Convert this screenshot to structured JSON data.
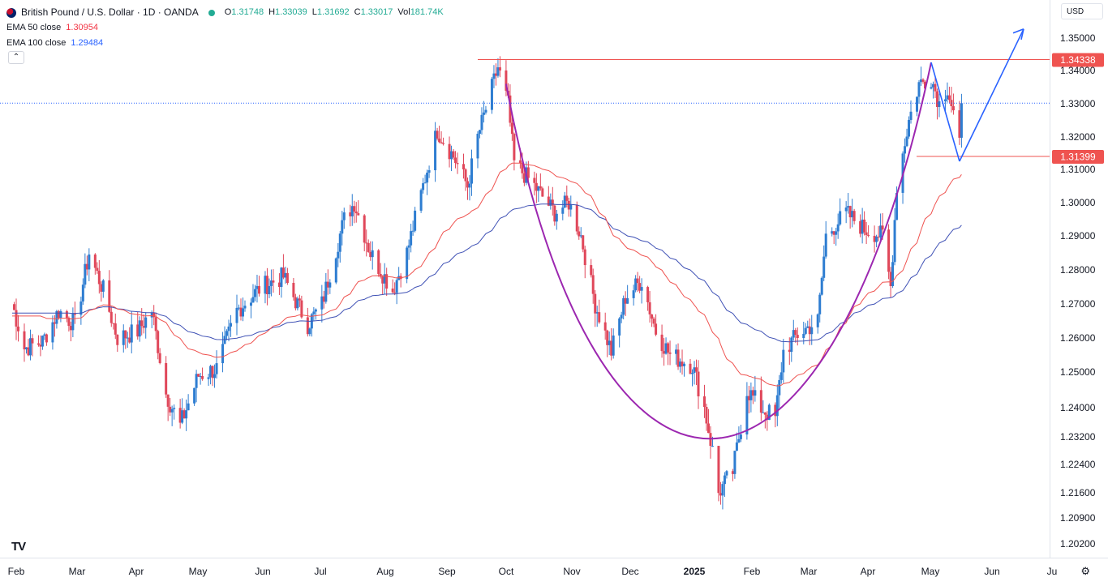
{
  "header": {
    "symbol_title": "British Pound / U.S. Dollar · 1D · OANDA",
    "ohlc": [
      {
        "label": "O",
        "value": "1.31748"
      },
      {
        "label": "H",
        "value": "1.33039"
      },
      {
        "label": "L",
        "value": "1.31692"
      },
      {
        "label": "C",
        "value": "1.33017"
      },
      {
        "label": "Vol",
        "value": "181.74K"
      }
    ],
    "ema50_label": "EMA 50 close",
    "ema50_value": "1.30954",
    "ema100_label": "EMA 100 close",
    "ema100_value": "1.29484",
    "collapse_icon": "chevron-up-icon",
    "currency": "USD",
    "logo": "TV",
    "settings_icon": "gear-icon"
  },
  "colors": {
    "up": "#2e7dd1",
    "down": "#e0475a",
    "ema50": "#ef5350",
    "ema100": "#3f51b5",
    "cup": "#9c27b0",
    "arrow": "#2962ff",
    "level": "#ef5350",
    "grid_dotted": "#2962ff"
  },
  "chart_data": {
    "type": "candlestick",
    "instrument": "British Pound / U.S. Dollar",
    "interval": "1D",
    "source": "OANDA",
    "y_ticks": [
      "1.35000",
      "1.34000",
      "1.33000",
      "1.32000",
      "1.31000",
      "1.30000",
      "1.29000",
      "1.28000",
      "1.27000",
      "1.26000",
      "1.25000",
      "1.24000",
      "1.23200",
      "1.22400",
      "1.21600",
      "1.20900",
      "1.20200"
    ],
    "x_ticks": [
      "Feb",
      "Mar",
      "Apr",
      "May",
      "Jun",
      "Jul",
      "Aug",
      "Sep",
      "Oct",
      "Nov",
      "Dec",
      "2025",
      "Feb",
      "Mar",
      "Apr",
      "May",
      "Jun",
      "Ju"
    ],
    "price_labels": [
      {
        "value": 1.34338,
        "text": "1.34338"
      },
      {
        "value": 1.31399,
        "text": "1.31399"
      }
    ],
    "last_close": 1.33017,
    "price_path": [
      {
        "date": "2024-01-30",
        "close": 1.27
      },
      {
        "date": "2024-02-05",
        "close": 1.257
      },
      {
        "date": "2024-02-14",
        "close": 1.259
      },
      {
        "date": "2024-02-22",
        "close": 1.268
      },
      {
        "date": "2024-03-01",
        "close": 1.264
      },
      {
        "date": "2024-03-08",
        "close": 1.285
      },
      {
        "date": "2024-03-15",
        "close": 1.274
      },
      {
        "date": "2024-03-22",
        "close": 1.26
      },
      {
        "date": "2024-04-01",
        "close": 1.262
      },
      {
        "date": "2024-04-08",
        "close": 1.268
      },
      {
        "date": "2024-04-15",
        "close": 1.244
      },
      {
        "date": "2024-04-22",
        "close": 1.235
      },
      {
        "date": "2024-05-01",
        "close": 1.249
      },
      {
        "date": "2024-05-10",
        "close": 1.251
      },
      {
        "date": "2024-05-20",
        "close": 1.268
      },
      {
        "date": "2024-06-01",
        "close": 1.275
      },
      {
        "date": "2024-06-12",
        "close": 1.278
      },
      {
        "date": "2024-06-24",
        "close": 1.264
      },
      {
        "date": "2024-07-01",
        "close": 1.27
      },
      {
        "date": "2024-07-12",
        "close": 1.295
      },
      {
        "date": "2024-07-17",
        "close": 1.3
      },
      {
        "date": "2024-07-25",
        "close": 1.285
      },
      {
        "date": "2024-08-05",
        "close": 1.274
      },
      {
        "date": "2024-08-12",
        "close": 1.285
      },
      {
        "date": "2024-08-20",
        "close": 1.305
      },
      {
        "date": "2024-08-27",
        "close": 1.322
      },
      {
        "date": "2024-09-04",
        "close": 1.314
      },
      {
        "date": "2024-09-11",
        "close": 1.305
      },
      {
        "date": "2024-09-16",
        "close": 1.32
      },
      {
        "date": "2024-09-26",
        "close": 1.341
      },
      {
        "date": "2024-10-01",
        "close": 1.33
      },
      {
        "date": "2024-10-04",
        "close": 1.312
      },
      {
        "date": "2024-10-14",
        "close": 1.305
      },
      {
        "date": "2024-10-24",
        "close": 1.297
      },
      {
        "date": "2024-10-31",
        "close": 1.3
      },
      {
        "date": "2024-11-06",
        "close": 1.29
      },
      {
        "date": "2024-11-13",
        "close": 1.27
      },
      {
        "date": "2024-11-21",
        "close": 1.256
      },
      {
        "date": "2024-11-28",
        "close": 1.272
      },
      {
        "date": "2024-12-06",
        "close": 1.277
      },
      {
        "date": "2024-12-13",
        "close": 1.262
      },
      {
        "date": "2024-12-20",
        "close": 1.255
      },
      {
        "date": "2024-12-31",
        "close": 1.252
      },
      {
        "date": "2025-01-06",
        "close": 1.24
      },
      {
        "date": "2025-01-10",
        "close": 1.228
      },
      {
        "date": "2025-01-13",
        "close": 1.216
      },
      {
        "date": "2025-01-20",
        "close": 1.222
      },
      {
        "date": "2025-01-27",
        "close": 1.245
      },
      {
        "date": "2025-02-03",
        "close": 1.24
      },
      {
        "date": "2025-02-10",
        "close": 1.237
      },
      {
        "date": "2025-02-14",
        "close": 1.256
      },
      {
        "date": "2025-02-21",
        "close": 1.261
      },
      {
        "date": "2025-03-03",
        "close": 1.265
      },
      {
        "date": "2025-03-07",
        "close": 1.29
      },
      {
        "date": "2025-03-17",
        "close": 1.297
      },
      {
        "date": "2025-03-26",
        "close": 1.292
      },
      {
        "date": "2025-04-04",
        "close": 1.29
      },
      {
        "date": "2025-04-08",
        "close": 1.275
      },
      {
        "date": "2025-04-11",
        "close": 1.305
      },
      {
        "date": "2025-04-17",
        "close": 1.325
      },
      {
        "date": "2025-04-22",
        "close": 1.336
      },
      {
        "date": "2025-04-28",
        "close": 1.338
      },
      {
        "date": "2025-05-02",
        "close": 1.33
      },
      {
        "date": "2025-05-06",
        "close": 1.335
      },
      {
        "date": "2025-05-09",
        "close": 1.327
      },
      {
        "date": "2025-05-12",
        "close": 1.317
      },
      {
        "date": "2025-05-13",
        "close": 1.33
      }
    ],
    "ema50": {
      "name": "EMA 50 close",
      "last": 1.30954
    },
    "ema100": {
      "name": "EMA 100 close",
      "last": 1.29484
    }
  }
}
